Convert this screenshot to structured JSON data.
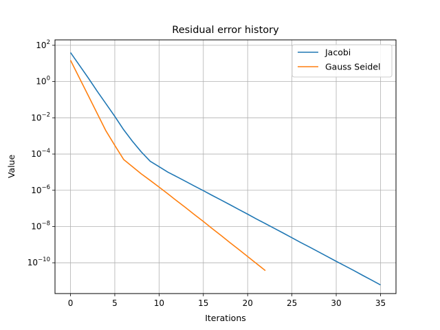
{
  "chart_data": {
    "type": "line",
    "title": "Residual error history",
    "xlabel": "Iterations",
    "ylabel": "Value",
    "xlim": [
      -1.75,
      36.75
    ],
    "ylim_log10": [
      -11.7,
      2.3
    ],
    "yscale": "log",
    "grid": true,
    "legend_position": "top-right",
    "x_ticks": [
      0,
      5,
      10,
      15,
      20,
      25,
      30,
      35
    ],
    "y_tick_exponents": [
      2,
      0,
      -2,
      -4,
      -6,
      -8,
      -10
    ],
    "y_tick_base": "10",
    "series": [
      {
        "name": "Jacobi",
        "color": "#1f77b4",
        "x": [
          0,
          1,
          2,
          3,
          4,
          5,
          6,
          7,
          8,
          9,
          10,
          11,
          12,
          13,
          14,
          15,
          16,
          17,
          18,
          19,
          20,
          21,
          22,
          23,
          24,
          25,
          26,
          27,
          28,
          29,
          30,
          31,
          32,
          33,
          34,
          35
        ],
        "y": [
          40,
          8,
          1.6,
          0.3,
          0.06,
          0.012,
          0.0022,
          0.0005,
          0.00013,
          4e-05,
          2e-05,
          1e-05,
          5.6e-06,
          3.1e-06,
          1.7e-06,
          9.5e-07,
          5.2e-07,
          2.9e-07,
          1.6e-07,
          8.7e-08,
          4.8e-08,
          2.6e-08,
          1.45e-08,
          8e-09,
          4.4e-09,
          2.4e-09,
          1.3e-09,
          7.3e-10,
          4e-10,
          2.2e-10,
          1.2e-10,
          6.7e-11,
          3.7e-11,
          2e-11,
          1.1e-11,
          6e-12
        ]
      },
      {
        "name": "Gauss Seidel",
        "color": "#ff7f0e",
        "x": [
          0,
          1,
          2,
          3,
          4,
          5,
          6,
          7,
          8,
          9,
          10,
          11,
          12,
          13,
          14,
          15,
          16,
          17,
          18,
          19,
          20,
          21,
          22
        ],
        "y": [
          15,
          1.6,
          0.17,
          0.018,
          0.0019,
          0.0003,
          5e-05,
          2e-05,
          8e-06,
          3.5e-06,
          1.5e-06,
          6.3e-07,
          2.6e-07,
          1.1e-07,
          4.5e-08,
          1.9e-08,
          7.7e-09,
          3.2e-09,
          1.3e-09,
          5.4e-10,
          2.2e-10,
          9e-11,
          3.7e-11
        ]
      }
    ]
  }
}
